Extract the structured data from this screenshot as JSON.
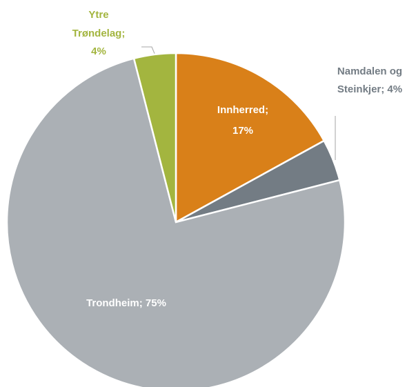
{
  "chart_data": {
    "type": "pie",
    "values": [
      17,
      4,
      75,
      4
    ],
    "colors": [
      "#d98019",
      "#737c84",
      "#abb0b5",
      "#a3b53f"
    ],
    "data_labels": [
      [
        "Innherred;",
        "17%"
      ],
      [
        "Namdalen og",
        "Steinkjer; 4%"
      ],
      [
        "Trondheim; 75%"
      ],
      [
        "Ytre",
        "Trøndelag;",
        "4%"
      ]
    ]
  }
}
